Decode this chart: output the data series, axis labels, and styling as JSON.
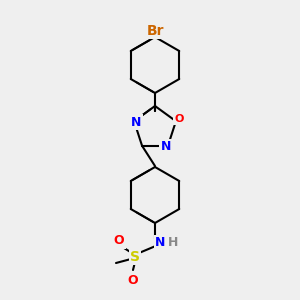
{
  "background_color": "#efefef",
  "bond_color": "#000000",
  "bond_width": 1.5,
  "atom_colors": {
    "Br": "#cc6600",
    "N": "#0000ff",
    "O": "#ff0000",
    "S": "#cccc00",
    "H": "#888888",
    "C": "#000000"
  },
  "font_size": 9
}
